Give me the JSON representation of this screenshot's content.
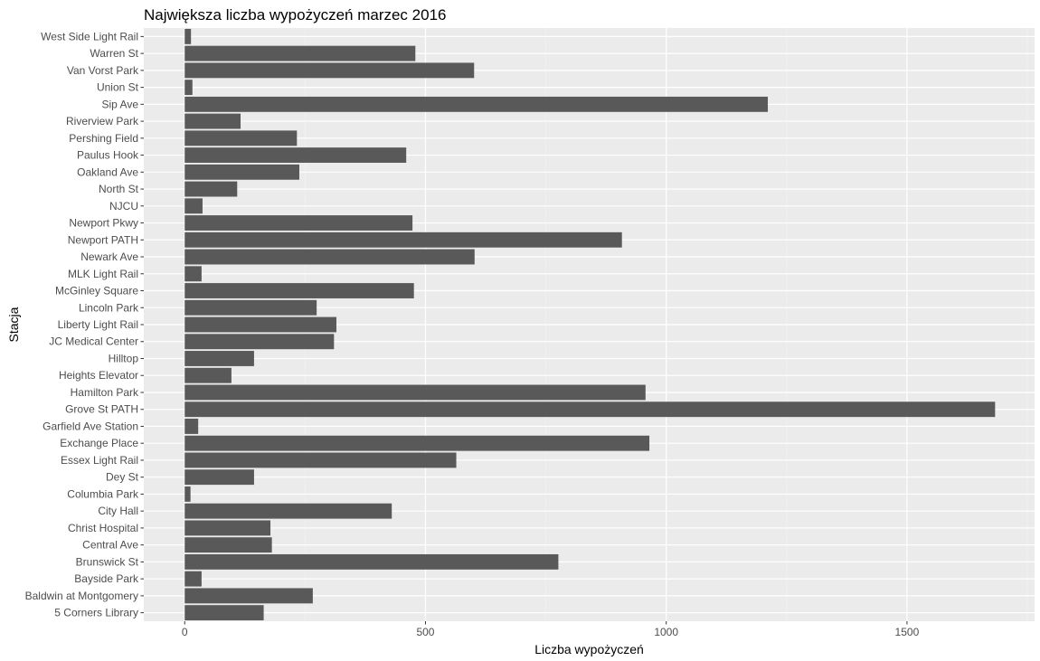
{
  "chart_data": {
    "type": "bar",
    "orientation": "horizontal",
    "title": "Największa liczba wypożyczeń marzec 2016",
    "xlabel": "Liczba wypożyczeń",
    "ylabel": "Stacja",
    "xlim": [
      -85,
      1765
    ],
    "xticks": [
      0,
      500,
      1000,
      1500
    ],
    "xtick_labels": [
      "0",
      "500",
      "1000",
      "1500"
    ],
    "grid": true,
    "legend": "none",
    "colors": {
      "bar": "#595959",
      "panel": "#ebebeb",
      "grid_major": "#ffffff",
      "grid_minor": "#f2f2f2",
      "text": "#4d4d4d",
      "title": "#000000"
    },
    "categories": [
      "West Side Light Rail",
      "Warren St",
      "Van Vorst Park",
      "Union St",
      "Sip Ave",
      "Riverview Park",
      "Pershing Field",
      "Paulus Hook",
      "Oakland Ave",
      "North St",
      "NJCU",
      "Newport Pkwy",
      "Newport PATH",
      "Newark Ave",
      "MLK Light Rail",
      "McGinley Square",
      "Lincoln Park",
      "Liberty Light Rail",
      "JC Medical Center",
      "Hilltop",
      "Heights Elevator",
      "Hamilton Park",
      "Grove St PATH",
      "Garfield Ave Station",
      "Exchange Place",
      "Essex Light Rail",
      "Dey St",
      "Columbia Park",
      "City Hall",
      "Christ Hospital",
      "Central Ave",
      "Brunswick St",
      "Bayside Park",
      "Baldwin at Montgomery",
      "5 Corners Library"
    ],
    "values": [
      13,
      479,
      601,
      16,
      1211,
      116,
      233,
      460,
      238,
      109,
      37,
      473,
      908,
      602,
      35,
      476,
      274,
      315,
      310,
      144,
      97,
      957,
      1683,
      28,
      965,
      564,
      144,
      12,
      430,
      178,
      181,
      776,
      35,
      266,
      164
    ]
  }
}
